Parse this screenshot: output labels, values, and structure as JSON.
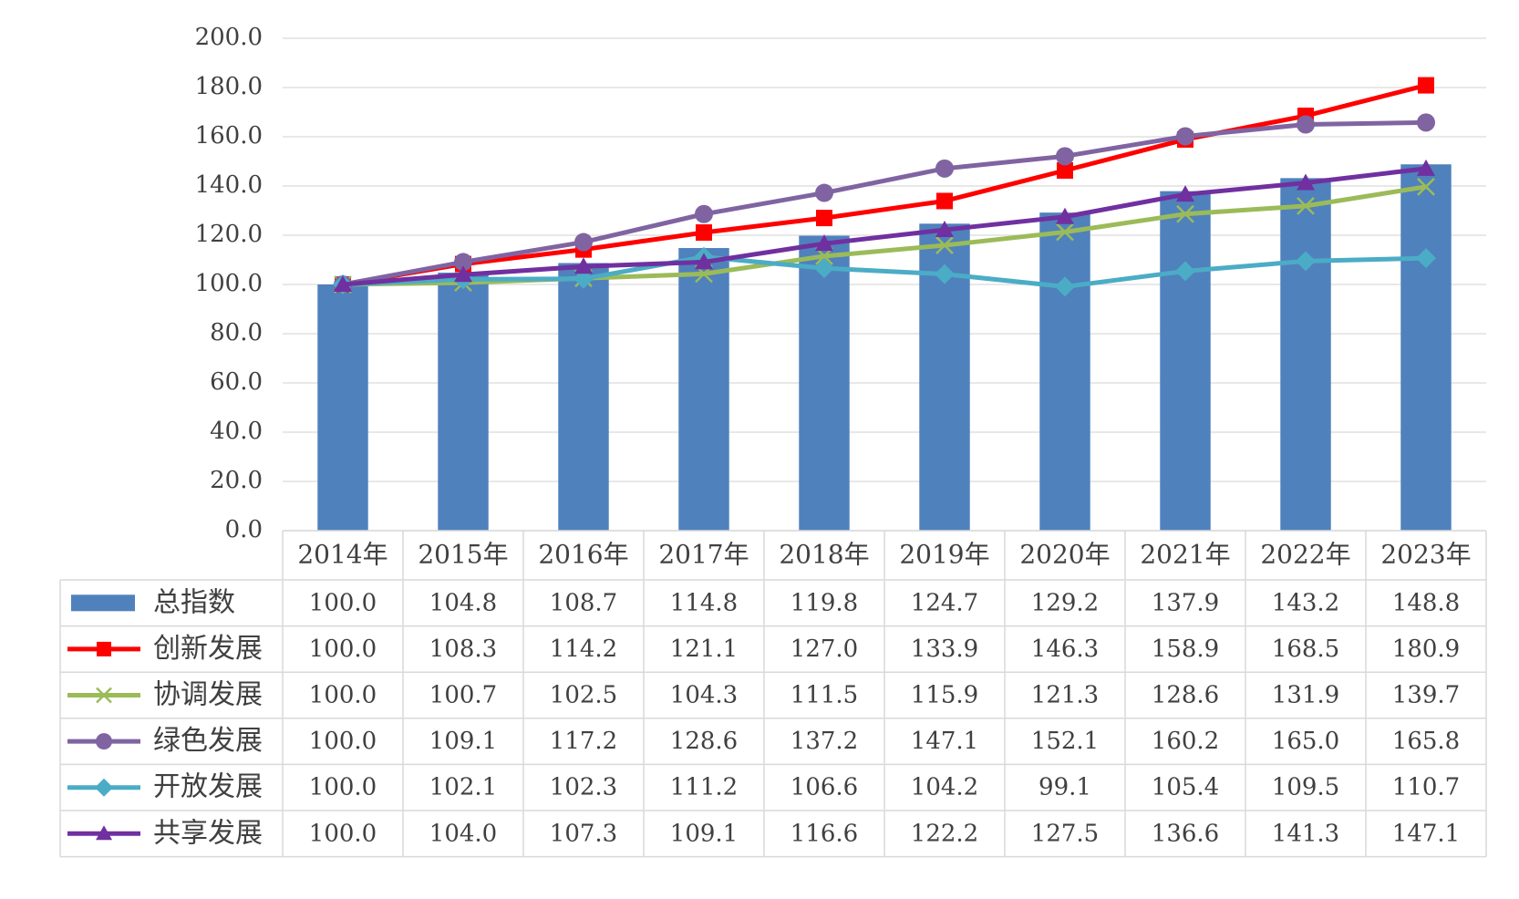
{
  "chart_data": {
    "type": "bar",
    "title": "",
    "xlabel": "",
    "ylabel": "",
    "ylim": [
      0,
      200
    ],
    "y_ticks": [
      "0.0",
      "20.0",
      "40.0",
      "60.0",
      "80.0",
      "100.0",
      "120.0",
      "140.0",
      "160.0",
      "180.0",
      "200.0"
    ],
    "grid": true,
    "legend": "data-table-left",
    "categories": [
      "2014年",
      "2015年",
      "2016年",
      "2017年",
      "2018年",
      "2019年",
      "2020年",
      "2021年",
      "2022年",
      "2023年"
    ],
    "series": [
      {
        "name": "总指数",
        "kind": "bar",
        "color": "#4F81BD",
        "marker": "none",
        "values": [
          100.0,
          104.8,
          108.7,
          114.8,
          119.8,
          124.7,
          129.2,
          137.9,
          143.2,
          148.8
        ],
        "labels": [
          "100.0",
          "104.8",
          "108.7",
          "114.8",
          "119.8",
          "124.7",
          "129.2",
          "137.9",
          "143.2",
          "148.8"
        ]
      },
      {
        "name": "创新发展",
        "kind": "line",
        "color": "#FF0000",
        "marker": "square",
        "values": [
          100.0,
          108.3,
          114.2,
          121.1,
          127.0,
          133.9,
          146.3,
          158.9,
          168.5,
          180.9
        ],
        "labels": [
          "100.0",
          "108.3",
          "114.2",
          "121.1",
          "127.0",
          "133.9",
          "146.3",
          "158.9",
          "168.5",
          "180.9"
        ]
      },
      {
        "name": "协调发展",
        "kind": "line",
        "color": "#9BBB59",
        "marker": "x",
        "values": [
          100.0,
          100.7,
          102.5,
          104.3,
          111.5,
          115.9,
          121.3,
          128.6,
          131.9,
          139.7
        ],
        "labels": [
          "100.0",
          "100.7",
          "102.5",
          "104.3",
          "111.5",
          "115.9",
          "121.3",
          "128.6",
          "131.9",
          "139.7"
        ]
      },
      {
        "name": "绿色发展",
        "kind": "line",
        "color": "#8064A2",
        "marker": "circle",
        "values": [
          100.0,
          109.1,
          117.2,
          128.6,
          137.2,
          147.1,
          152.1,
          160.2,
          165.0,
          165.8
        ],
        "labels": [
          "100.0",
          "109.1",
          "117.2",
          "128.6",
          "137.2",
          "147.1",
          "152.1",
          "160.2",
          "165.0",
          "165.8"
        ]
      },
      {
        "name": "开放发展",
        "kind": "line",
        "color": "#4BACC6",
        "marker": "diamond",
        "values": [
          100.0,
          102.1,
          102.3,
          111.2,
          106.6,
          104.2,
          99.1,
          105.4,
          109.5,
          110.7
        ],
        "labels": [
          "100.0",
          "102.1",
          "102.3",
          "111.2",
          "106.6",
          "104.2",
          "99.1",
          "105.4",
          "109.5",
          "110.7"
        ]
      },
      {
        "name": "共享发展",
        "kind": "line",
        "color": "#7030A0",
        "marker": "triangle",
        "values": [
          100.0,
          104.0,
          107.3,
          109.1,
          116.6,
          122.2,
          127.5,
          136.6,
          141.3,
          147.1
        ],
        "labels": [
          "100.0",
          "104.0",
          "107.3",
          "109.1",
          "116.6",
          "122.2",
          "127.5",
          "136.6",
          "141.3",
          "147.1"
        ]
      }
    ]
  }
}
